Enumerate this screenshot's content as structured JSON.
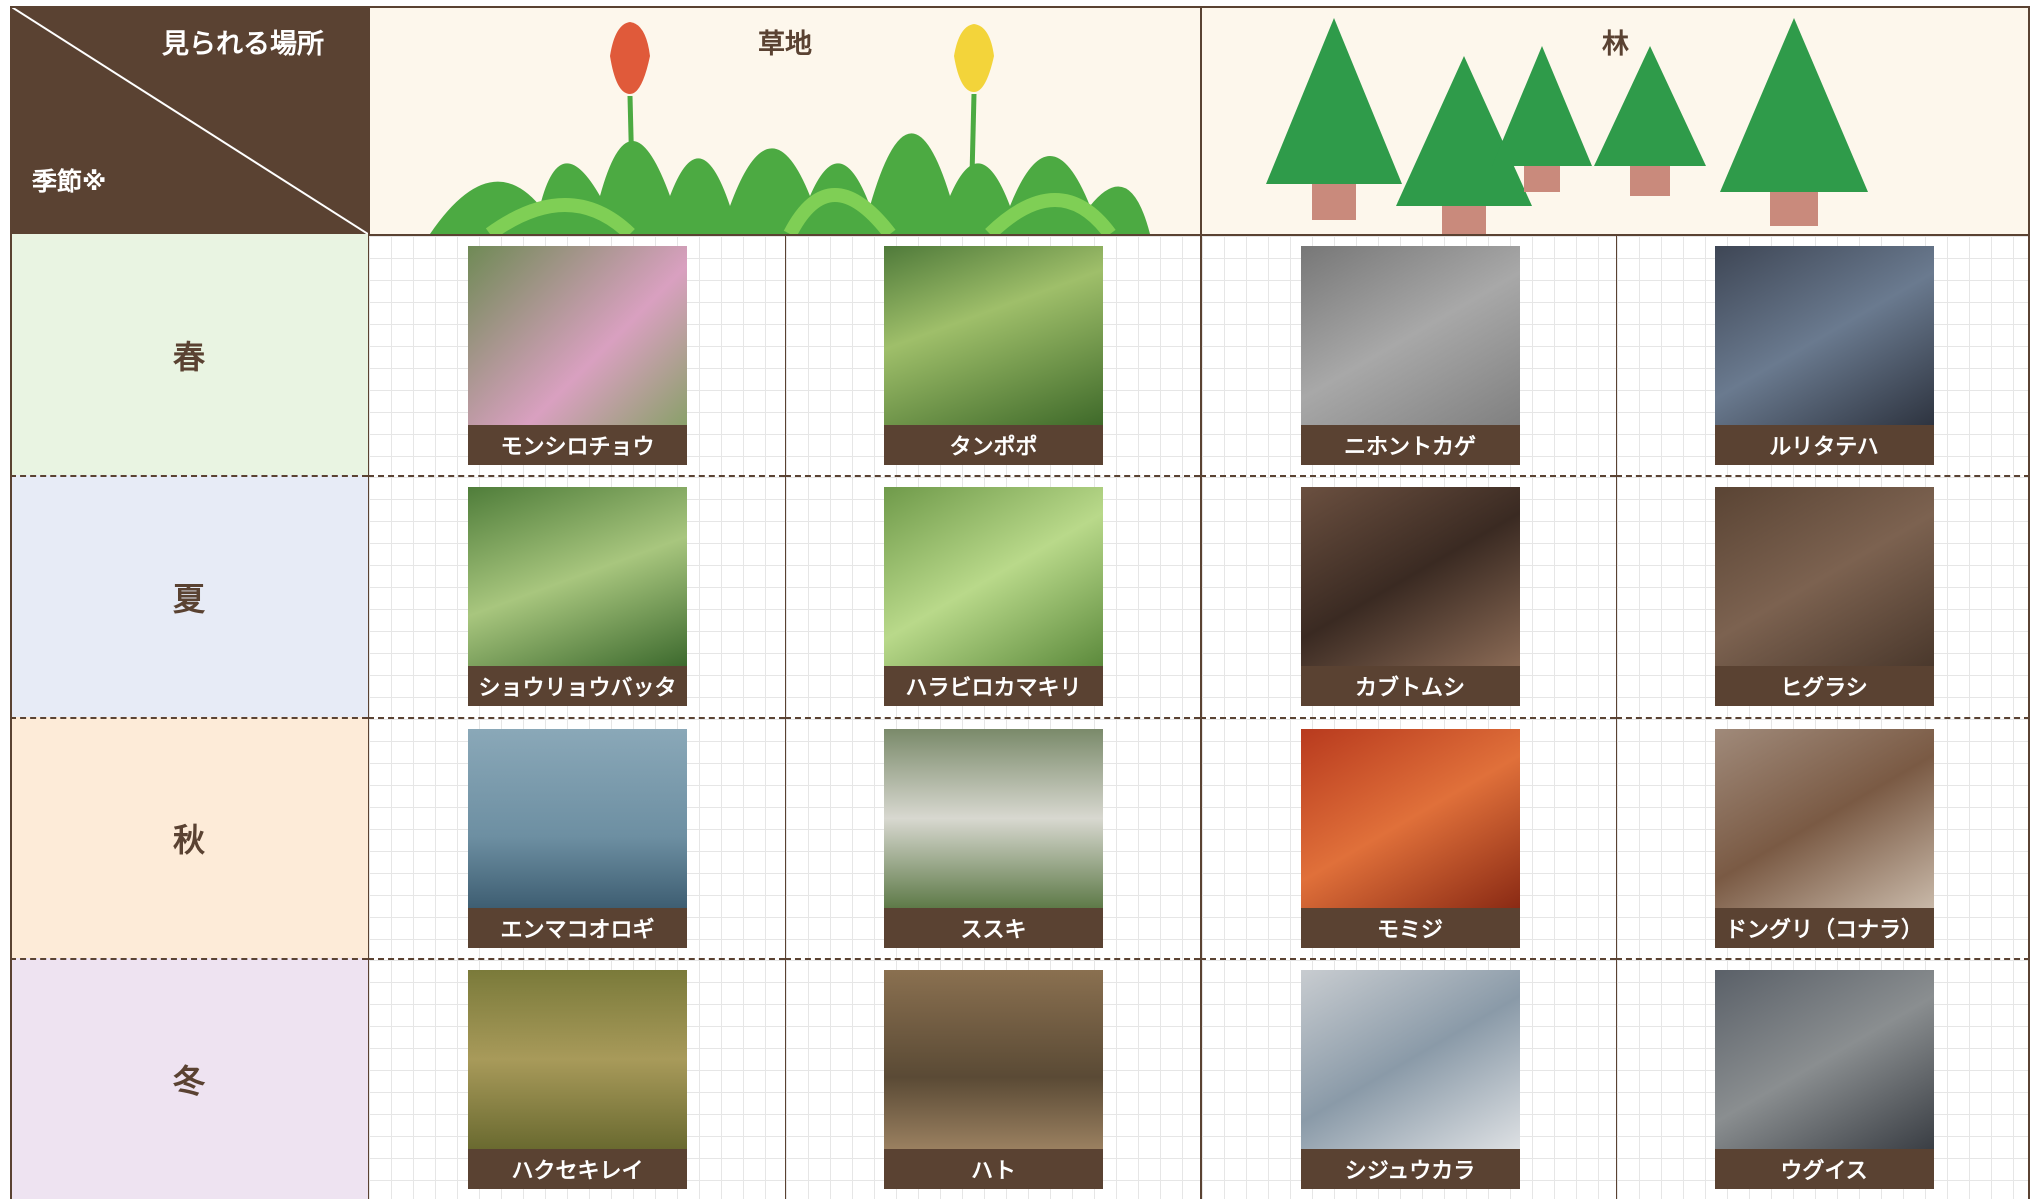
{
  "header": {
    "corner_top": "見られる場所",
    "corner_bottom": "季節※",
    "columns": [
      "草地",
      "林"
    ]
  },
  "rows": [
    {
      "season": "春",
      "items": [
        "モンシロチョウ",
        "タンポポ",
        "ニホントカゲ",
        "ルリタテハ"
      ]
    },
    {
      "season": "夏",
      "items": [
        "ショウリョウバッタ",
        "ハラビロカマキリ",
        "カブトムシ",
        "ヒグラシ"
      ]
    },
    {
      "season": "秋",
      "items": [
        "エンマコオロギ",
        "ススキ",
        "モミジ",
        "ドングリ（コナラ）"
      ]
    },
    {
      "season": "冬",
      "items": [
        "ハクセキレイ",
        "ハト",
        "シジュウカラ",
        "ウグイス"
      ]
    }
  ]
}
